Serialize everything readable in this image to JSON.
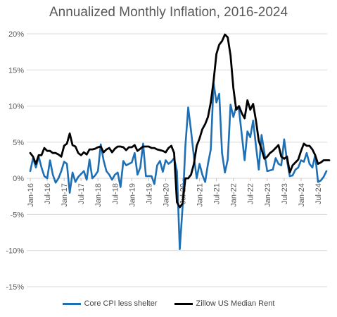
{
  "chart_data": {
    "type": "line",
    "title": "Annualized Monthly Inflation, 2016-2024",
    "xlabel": "",
    "ylabel": "",
    "ylim": [
      -15,
      20
    ],
    "y_ticks": [
      "20%",
      "15%",
      "10%",
      "5%",
      "0%",
      "-5%",
      "-10%",
      "-15%"
    ],
    "x_tick_labels": [
      "Jan-16",
      "Jul-16",
      "Jan-17",
      "Jul-17",
      "Jan-18",
      "Jul-18",
      "Jan-19",
      "Jul-19",
      "Jan-20",
      "Jul-20",
      "Jan-21",
      "Jul-21",
      "Jan-22",
      "Jul-22",
      "Jan-23",
      "Jul-23",
      "Jan-24",
      "Jul-24"
    ],
    "grid": true,
    "legend_position": "bottom",
    "colors": {
      "core": "#1f6fb5",
      "rent": "#000000",
      "grid": "#d9d9d9"
    },
    "series": [
      {
        "name": "Core CPI less shelter",
        "values": [
          1.0,
          2.8,
          1.5,
          3.0,
          1.5,
          0.3,
          0.0,
          2.5,
          0.5,
          -0.6,
          0.0,
          1.0,
          2.3,
          2.0,
          -2.0,
          0.8,
          -0.5,
          0.2,
          0.6,
          1.0,
          -0.2,
          2.6,
          0.0,
          0.4,
          1.0,
          4.7,
          2.5,
          1.0,
          0.5,
          -0.2,
          0.5,
          0.8,
          -1.2,
          2.4,
          1.8,
          2.0,
          2.2,
          3.5,
          0.5,
          1.5,
          4.8,
          0.3,
          0.3,
          0.3,
          -0.8,
          1.8,
          2.4,
          0.9,
          2.5,
          2.0,
          2.3,
          2.8,
          1.0,
          -9.8,
          -4.0,
          4.5,
          9.8,
          6.6,
          3.0,
          0.0,
          2.0,
          0.5,
          -0.5,
          2.0,
          4.0,
          13.2,
          10.5,
          11.7,
          3.5,
          0.8,
          2.6,
          10.2,
          8.5,
          9.9,
          9.5,
          6.0,
          2.5,
          6.5,
          5.7,
          8.0,
          4.5,
          1.2,
          6.0,
          3.5,
          1.0,
          1.1,
          1.2,
          2.8,
          2.0,
          1.8,
          5.4,
          2.5,
          0.3,
          0.4,
          1.2,
          1.5,
          2.5,
          2.3,
          3.5,
          2.0,
          1.5,
          3.2,
          -0.5,
          -0.3,
          0.2,
          1.0
        ]
      },
      {
        "name": "Zillow US Median Rent",
        "values": [
          3.5,
          3.0,
          2.0,
          3.2,
          3.2,
          4.2,
          3.8,
          3.8,
          3.5,
          3.5,
          3.3,
          3.0,
          4.5,
          4.8,
          6.2,
          4.6,
          4.4,
          3.5,
          3.2,
          3.6,
          3.3,
          4.0,
          4.0,
          4.1,
          4.3,
          4.4,
          3.6,
          4.0,
          4.2,
          3.6,
          4.1,
          4.4,
          4.4,
          4.3,
          3.9,
          4.3,
          4.3,
          4.6,
          3.8,
          4.1,
          4.4,
          4.4,
          4.4,
          4.2,
          4.2,
          4.0,
          3.9,
          3.8,
          3.6,
          4.2,
          4.5,
          3.5,
          -3.3,
          -4.0,
          -3.5,
          0.0,
          0.0,
          0.5,
          2.0,
          4.5,
          5.5,
          6.8,
          7.5,
          8.5,
          10.5,
          13.5,
          17.2,
          18.5,
          19.0,
          19.9,
          19.5,
          17.0,
          12.5,
          9.5,
          10.0,
          9.0,
          8.3,
          10.8,
          9.5,
          10.3,
          8.0,
          5.2,
          4.0,
          2.7,
          3.0,
          3.5,
          3.8,
          4.2,
          4.6,
          3.0,
          2.7,
          3.0,
          0.8,
          1.8,
          2.2,
          2.6,
          3.8,
          4.8,
          4.5,
          4.5,
          4.0,
          3.2,
          2.0,
          2.2,
          2.5,
          2.5,
          2.5
        ]
      }
    ]
  }
}
